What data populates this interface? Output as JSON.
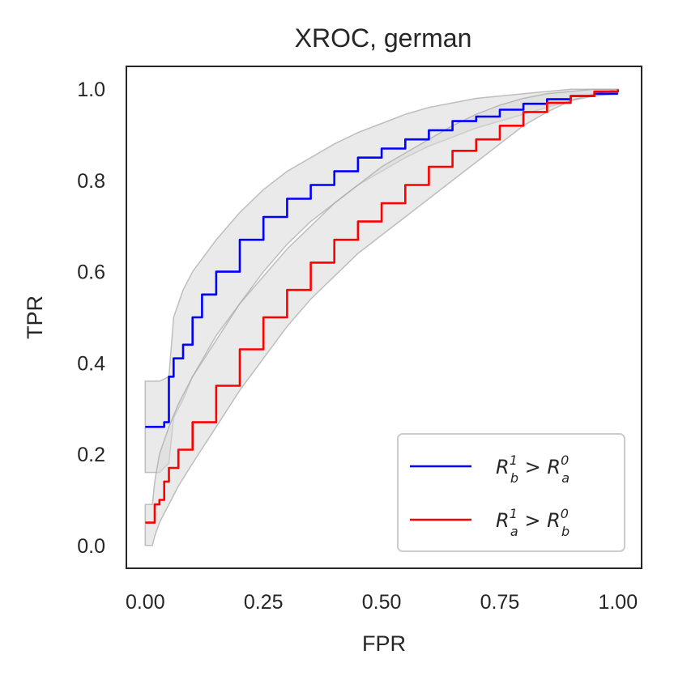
{
  "chart_data": {
    "type": "line",
    "title": "XROC, german",
    "xlabel": "FPR",
    "ylabel": "TPR",
    "xlim": [
      -0.04,
      1.05
    ],
    "ylim": [
      -0.05,
      1.05
    ],
    "xticks": [
      "0.00",
      "0.25",
      "0.50",
      "0.75",
      "1.00"
    ],
    "yticks": [
      "0.0",
      "0.2",
      "0.4",
      "0.6",
      "0.8",
      "1.0"
    ],
    "grid": false,
    "legend_position": "bottom-right",
    "colors": {
      "blue": "#0000ff",
      "red": "#ff0000",
      "band": "#d9d9d9",
      "band_edge": "#a6a6a6"
    },
    "series": [
      {
        "name": "R_b^1 > R_a^0",
        "legend_base": "R",
        "legend_sup": "1",
        "legend_sub": "b",
        "legend_op": ">",
        "legend_base2": "R",
        "legend_sup2": "0",
        "legend_sub2": "a",
        "color": "#0000ff",
        "x": [
          0.0,
          0.03,
          0.04,
          0.05,
          0.06,
          0.08,
          0.1,
          0.12,
          0.15,
          0.2,
          0.25,
          0.3,
          0.35,
          0.4,
          0.45,
          0.5,
          0.55,
          0.6,
          0.65,
          0.7,
          0.75,
          0.8,
          0.85,
          0.9,
          0.95,
          1.0
        ],
        "y": [
          0.26,
          0.26,
          0.27,
          0.37,
          0.41,
          0.44,
          0.5,
          0.55,
          0.6,
          0.67,
          0.72,
          0.76,
          0.79,
          0.82,
          0.85,
          0.87,
          0.89,
          0.91,
          0.93,
          0.94,
          0.955,
          0.968,
          0.978,
          0.985,
          0.99,
          0.99
        ]
      },
      {
        "name": "R_a^1 > R_b^0",
        "legend_base": "R",
        "legend_sup": "1",
        "legend_sub": "a",
        "legend_op": ">",
        "legend_base2": "R",
        "legend_sup2": "0",
        "legend_sub2": "b",
        "color": "#ff0000",
        "x": [
          0.0,
          0.015,
          0.02,
          0.03,
          0.04,
          0.05,
          0.07,
          0.1,
          0.15,
          0.2,
          0.25,
          0.3,
          0.35,
          0.4,
          0.45,
          0.5,
          0.55,
          0.6,
          0.65,
          0.7,
          0.75,
          0.8,
          0.85,
          0.9,
          0.95,
          1.0
        ],
        "y": [
          0.05,
          0.05,
          0.09,
          0.1,
          0.14,
          0.17,
          0.21,
          0.27,
          0.35,
          0.43,
          0.5,
          0.56,
          0.62,
          0.67,
          0.71,
          0.75,
          0.79,
          0.83,
          0.865,
          0.89,
          0.92,
          0.95,
          0.97,
          0.985,
          0.995,
          1.0
        ]
      }
    ],
    "bands": [
      {
        "x": [
          0.0,
          0.03,
          0.05,
          0.06,
          0.08,
          0.1,
          0.15,
          0.2,
          0.25,
          0.3,
          0.35,
          0.4,
          0.45,
          0.5,
          0.55,
          0.6,
          0.65,
          0.7,
          0.75,
          0.8,
          0.85,
          0.9,
          0.95,
          1.0
        ],
        "low": [
          0.16,
          0.16,
          0.18,
          0.28,
          0.32,
          0.37,
          0.46,
          0.53,
          0.6,
          0.66,
          0.71,
          0.75,
          0.79,
          0.82,
          0.85,
          0.875,
          0.895,
          0.915,
          0.93,
          0.945,
          0.96,
          0.975,
          0.985,
          0.99
        ],
        "high": [
          0.36,
          0.36,
          0.37,
          0.5,
          0.56,
          0.6,
          0.67,
          0.73,
          0.78,
          0.82,
          0.85,
          0.88,
          0.905,
          0.925,
          0.945,
          0.96,
          0.97,
          0.98,
          0.985,
          0.99,
          0.995,
          1.0,
          1.0,
          1.0
        ]
      },
      {
        "x": [
          0.0,
          0.015,
          0.02,
          0.03,
          0.05,
          0.07,
          0.1,
          0.15,
          0.2,
          0.25,
          0.3,
          0.35,
          0.4,
          0.45,
          0.5,
          0.55,
          0.6,
          0.65,
          0.7,
          0.75,
          0.8,
          0.85,
          0.9,
          0.95,
          1.0
        ],
        "low": [
          0.0,
          0.0,
          0.02,
          0.05,
          0.09,
          0.13,
          0.18,
          0.26,
          0.34,
          0.41,
          0.48,
          0.54,
          0.59,
          0.64,
          0.68,
          0.72,
          0.76,
          0.8,
          0.84,
          0.88,
          0.92,
          0.95,
          0.975,
          0.99,
          1.0
        ],
        "high": [
          0.09,
          0.09,
          0.14,
          0.2,
          0.26,
          0.31,
          0.37,
          0.45,
          0.53,
          0.59,
          0.65,
          0.7,
          0.75,
          0.79,
          0.83,
          0.86,
          0.89,
          0.92,
          0.945,
          0.965,
          0.98,
          0.99,
          0.995,
          1.0,
          1.0
        ]
      }
    ]
  }
}
